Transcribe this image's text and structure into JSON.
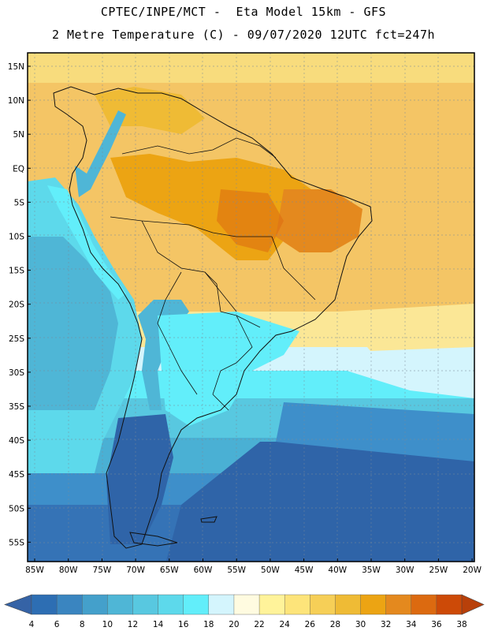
{
  "header": {
    "line1": "CPTEC/INPE/MCT -  Eta Model 15km - GFS",
    "line2": "2 Metre Temperature (C) - 09/07/2020 12UTC fct=247h"
  },
  "axes": {
    "lat_labels": [
      "15N",
      "10N",
      "5N",
      "EQ",
      "5S",
      "10S",
      "15S",
      "20S",
      "25S",
      "30S",
      "35S",
      "40S",
      "45S",
      "50S",
      "55S"
    ],
    "lon_labels": [
      "85W",
      "80W",
      "75W",
      "70W",
      "65W",
      "60W",
      "55W",
      "50W",
      "45W",
      "40W",
      "35W",
      "30W",
      "25W",
      "20W"
    ]
  },
  "colorbar": {
    "labels": [
      "4",
      "6",
      "8",
      "10",
      "12",
      "14",
      "16",
      "18",
      "20",
      "22",
      "24",
      "26",
      "28",
      "30",
      "32",
      "34",
      "36",
      "38"
    ],
    "colors": [
      "#2d6eb3",
      "#3a85c0",
      "#44a0cb",
      "#4fb6d6",
      "#58c8e0",
      "#5dd9eb",
      "#62eefa",
      "#d4f5fd",
      "#fffbe0",
      "#fff39a",
      "#fde47a",
      "#f6cf57",
      "#efbb35",
      "#eca413",
      "#e4891e",
      "#dc6a10",
      "#cd4a07"
    ],
    "end_low": "#3563a6",
    "end_high": "#b8400a"
  },
  "legend_colors": {
    "ocean_cold": "#2f64a8",
    "ocean_mid": "#3e8fca",
    "ocean_cool": "#58c8e0",
    "ocean_cyan": "#62eefa",
    "tropical_warm": "#f3c35c",
    "land_hot": "#eca413"
  }
}
